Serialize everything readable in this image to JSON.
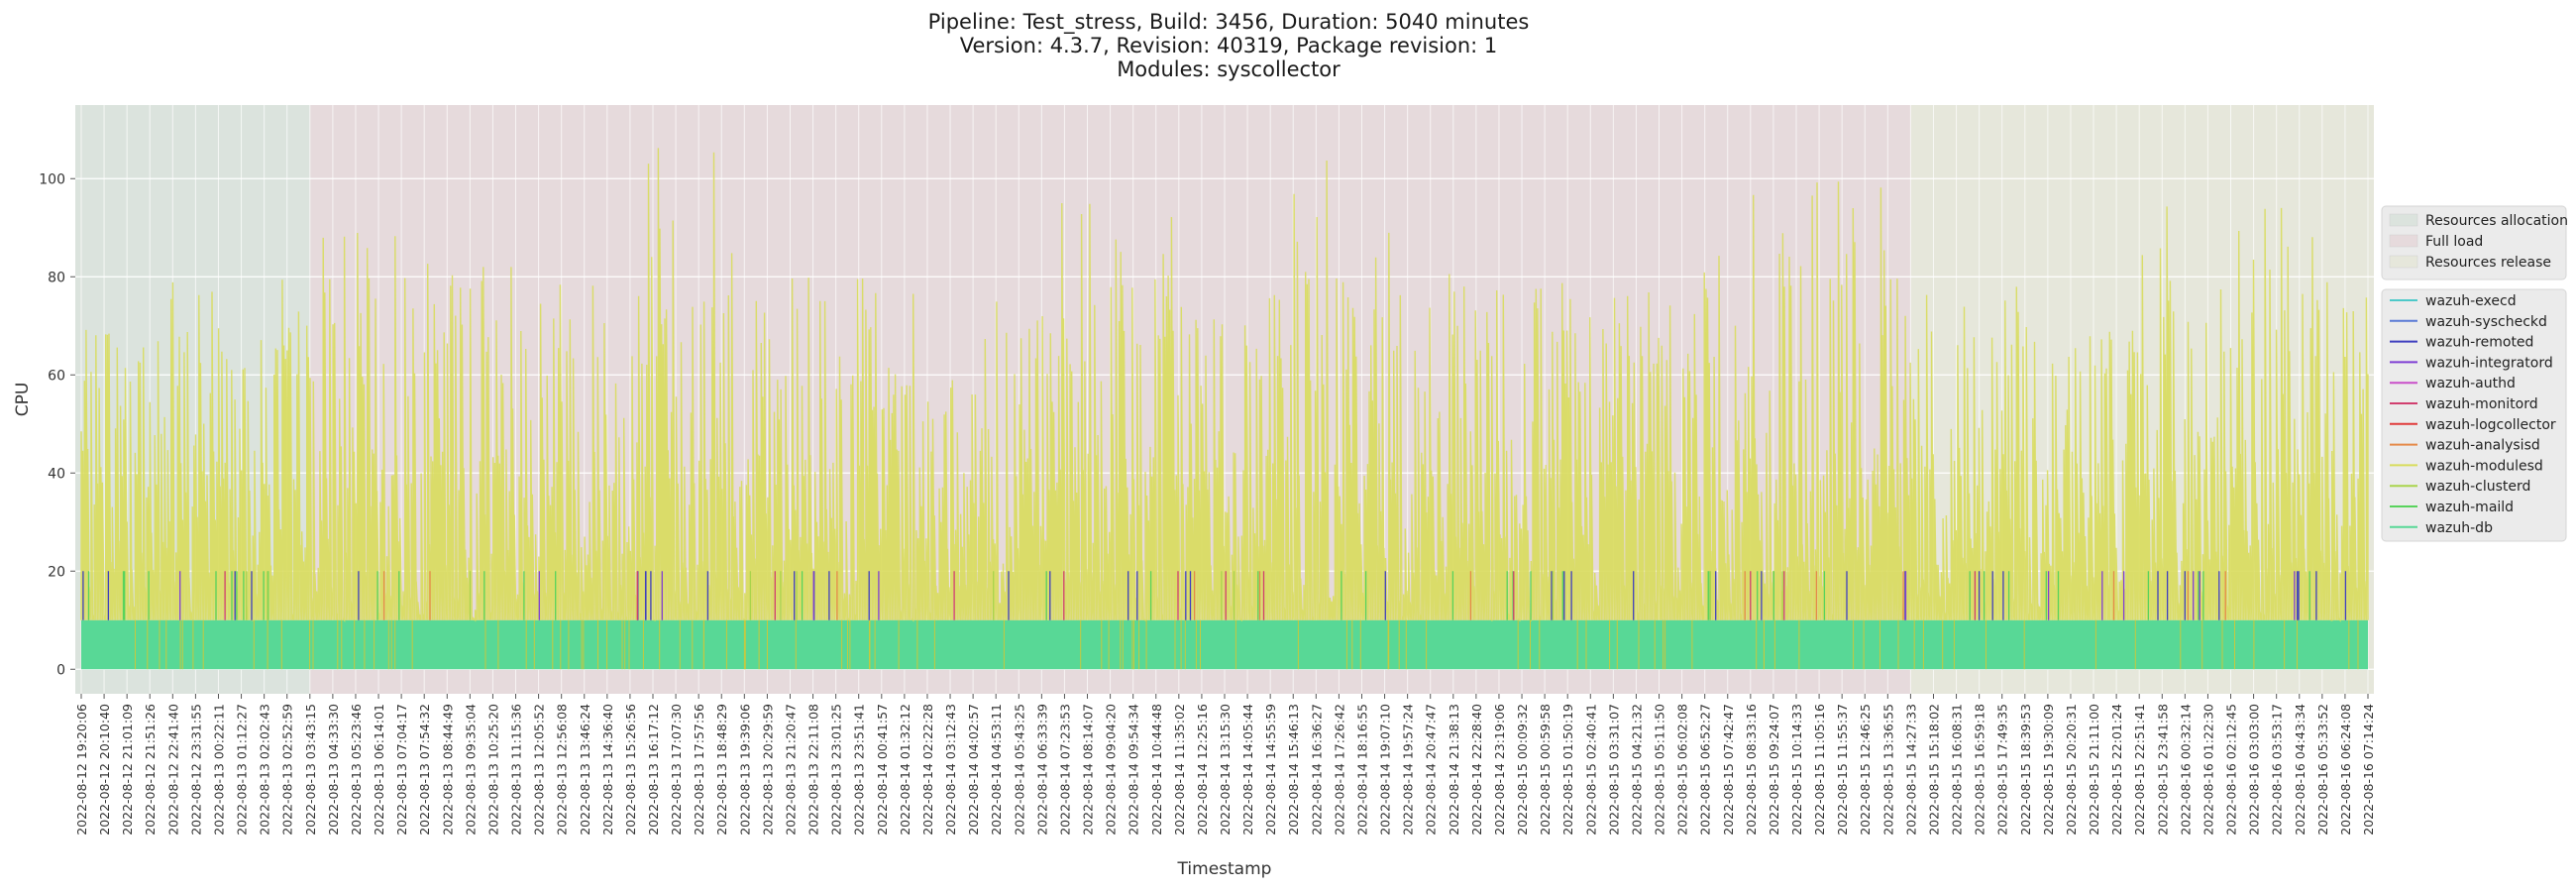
{
  "title_lines": [
    "Pipeline: Test_stress, Build: 3456, Duration: 5040 minutes",
    "Version: 4.3.7, Revision: 40319, Package revision: 1",
    "Modules: syscollector"
  ],
  "chart_data": {
    "type": "line",
    "xlabel": "Timestamp",
    "ylabel": "CPU",
    "ylim": [
      -5,
      115
    ],
    "yticks": [
      0,
      20,
      40,
      60,
      80,
      100
    ],
    "grid": true,
    "xtick_labels": [
      "2022-08-12 19:20:06",
      "2022-08-12 20:10:40",
      "2022-08-12 21:01:09",
      "2022-08-12 21:51:26",
      "2022-08-12 22:41:40",
      "2022-08-12 23:31:55",
      "2022-08-13 00:22:11",
      "2022-08-13 01:12:27",
      "2022-08-13 02:02:43",
      "2022-08-13 02:52:59",
      "2022-08-13 03:43:15",
      "2022-08-13 04:33:30",
      "2022-08-13 05:23:46",
      "2022-08-13 06:14:01",
      "2022-08-13 07:04:17",
      "2022-08-13 07:54:32",
      "2022-08-13 08:44:49",
      "2022-08-13 09:35:04",
      "2022-08-13 10:25:20",
      "2022-08-13 11:15:36",
      "2022-08-13 12:05:52",
      "2022-08-13 12:56:08",
      "2022-08-13 13:46:24",
      "2022-08-13 14:36:40",
      "2022-08-13 15:26:56",
      "2022-08-13 16:17:12",
      "2022-08-13 17:07:30",
      "2022-08-13 17:57:56",
      "2022-08-13 18:48:29",
      "2022-08-13 19:39:06",
      "2022-08-13 20:29:59",
      "2022-08-13 21:20:47",
      "2022-08-13 22:11:08",
      "2022-08-13 23:01:25",
      "2022-08-13 23:51:41",
      "2022-08-14 00:41:57",
      "2022-08-14 01:32:12",
      "2022-08-14 02:22:28",
      "2022-08-14 03:12:43",
      "2022-08-14 04:02:57",
      "2022-08-14 04:53:11",
      "2022-08-14 05:43:25",
      "2022-08-14 06:33:39",
      "2022-08-14 07:23:53",
      "2022-08-14 08:14:07",
      "2022-08-14 09:04:20",
      "2022-08-14 09:54:34",
      "2022-08-14 10:44:48",
      "2022-08-14 11:35:02",
      "2022-08-14 12:25:16",
      "2022-08-14 13:15:30",
      "2022-08-14 14:05:44",
      "2022-08-14 14:55:59",
      "2022-08-14 15:46:13",
      "2022-08-14 16:36:27",
      "2022-08-14 17:26:42",
      "2022-08-14 18:16:55",
      "2022-08-14 19:07:10",
      "2022-08-14 19:57:24",
      "2022-08-14 20:47:47",
      "2022-08-14 21:38:13",
      "2022-08-14 22:28:40",
      "2022-08-14 23:19:06",
      "2022-08-15 00:09:32",
      "2022-08-15 00:59:58",
      "2022-08-15 01:50:19",
      "2022-08-15 02:40:41",
      "2022-08-15 03:31:07",
      "2022-08-15 04:21:32",
      "2022-08-15 05:11:50",
      "2022-08-15 06:02:08",
      "2022-08-15 06:52:27",
      "2022-08-15 07:42:47",
      "2022-08-15 08:33:16",
      "2022-08-15 09:24:07",
      "2022-08-15 10:14:33",
      "2022-08-15 11:05:16",
      "2022-08-15 11:55:37",
      "2022-08-15 12:46:25",
      "2022-08-15 13:36:55",
      "2022-08-15 14:27:33",
      "2022-08-15 15:18:02",
      "2022-08-15 16:08:31",
      "2022-08-15 16:59:18",
      "2022-08-15 17:49:35",
      "2022-08-15 18:39:53",
      "2022-08-15 19:30:09",
      "2022-08-15 20:20:31",
      "2022-08-15 21:11:00",
      "2022-08-15 22:01:24",
      "2022-08-15 22:51:41",
      "2022-08-15 23:41:58",
      "2022-08-16 00:32:14",
      "2022-08-16 01:22:30",
      "2022-08-16 02:12:45",
      "2022-08-16 03:03:00",
      "2022-08-16 03:53:17",
      "2022-08-16 04:43:34",
      "2022-08-16 05:33:52",
      "2022-08-16 06:24:08",
      "2022-08-16 07:14:24"
    ],
    "phases": [
      {
        "name": "Resources allocation",
        "start": "2022-08-12 19:20:06",
        "end": "2022-08-13 03:43:15",
        "color": "#dbe3dd"
      },
      {
        "name": "Full load",
        "start": "2022-08-13 03:43:15",
        "end": "2022-08-15 14:27:33",
        "color": "#e6dadc"
      },
      {
        "name": "Resources release",
        "start": "2022-08-15 14:27:33",
        "end": "2022-08-16 07:14:24",
        "color": "#e6e7db"
      }
    ],
    "series": [
      {
        "name": "wazuh-execd",
        "color": "#4ec9c9",
        "values": [
          0,
          0,
          0,
          0,
          0,
          0,
          0,
          0,
          0,
          0
        ]
      },
      {
        "name": "wazuh-syscheckd",
        "color": "#5b7bd6",
        "values": [
          0,
          0,
          0,
          0,
          0,
          0,
          0,
          0,
          0,
          0
        ]
      },
      {
        "name": "wazuh-remoted",
        "color": "#3f3fbf",
        "values": [
          0,
          0,
          0,
          20,
          0,
          0,
          0,
          20,
          0,
          0
        ]
      },
      {
        "name": "wazuh-integratord",
        "color": "#7f3fd4",
        "values": [
          0,
          0,
          0,
          0,
          0,
          20,
          0,
          0,
          0,
          0
        ]
      },
      {
        "name": "wazuh-authd",
        "color": "#c94fc9",
        "values": [
          0,
          0,
          0,
          0,
          0,
          0,
          0,
          0,
          0,
          0
        ]
      },
      {
        "name": "wazuh-monitord",
        "color": "#d13f6f",
        "values": [
          0,
          0,
          0,
          0,
          0,
          0,
          0,
          0,
          0,
          0
        ]
      },
      {
        "name": "wazuh-logcollector",
        "color": "#e03a3a",
        "values": [
          0,
          0,
          0,
          0,
          0,
          0,
          0,
          0,
          0,
          0
        ]
      },
      {
        "name": "wazuh-analysisd",
        "color": "#e58a4a",
        "values": [
          0,
          0,
          0,
          0,
          20,
          0,
          0,
          0,
          0,
          0
        ]
      },
      {
        "name": "wazuh-modulesd",
        "color": "#d8dc5c",
        "values": [
          60,
          80,
          100,
          40,
          85,
          95,
          70,
          90,
          60,
          85
        ]
      },
      {
        "name": "wazuh-clusterd",
        "color": "#a9d44c",
        "values": [
          0,
          0,
          0,
          0,
          0,
          0,
          0,
          0,
          0,
          0
        ]
      },
      {
        "name": "wazuh-maild",
        "color": "#58d35c",
        "values": [
          0,
          20,
          0,
          0,
          0,
          0,
          20,
          0,
          0,
          20
        ]
      },
      {
        "name": "wazuh-db",
        "color": "#58d896",
        "values": [
          10,
          10,
          10,
          10,
          10,
          10,
          10,
          10,
          10,
          10
        ]
      }
    ]
  }
}
